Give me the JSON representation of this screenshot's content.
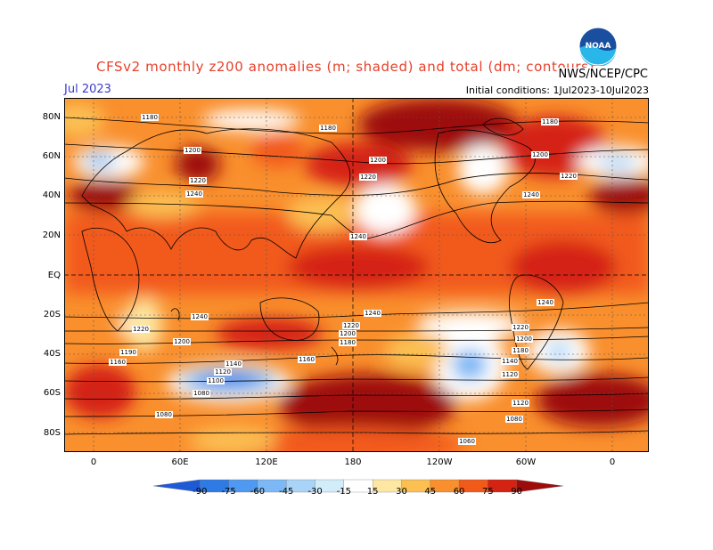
{
  "title": "CFSv2 monthly z200 anomalies (m; shaded) and total (dm; contours)",
  "period": "Jul 2023",
  "initial_conditions": "Initial conditions: 1Jul2023-10Jul2023",
  "agency": "NWS/NCEP/CPC",
  "logo_text": "NOAA",
  "lat_labels": [
    "80N",
    "60N",
    "40N",
    "20N",
    "EQ",
    "20S",
    "40S",
    "60S",
    "80S"
  ],
  "lon_labels": [
    "0",
    "60E",
    "120E",
    "180",
    "120W",
    "60W",
    "0"
  ],
  "colorbar": {
    "ticks": [
      "-90",
      "-75",
      "-60",
      "-45",
      "-30",
      "-15",
      "15",
      "30",
      "45",
      "60",
      "75",
      "90"
    ],
    "colors": [
      "#1e5ad6",
      "#2f7be6",
      "#4f9af0",
      "#7bb8f5",
      "#a9d4f8",
      "#d2ecfa",
      "#ffffff",
      "#fde7a3",
      "#fbbf52",
      "#f98f2d",
      "#f25a1a",
      "#d52313",
      "#9e0b0b"
    ]
  },
  "contour_labels": [
    {
      "text": "1180",
      "pos": "north-atlantic-europe"
    },
    {
      "text": "1180",
      "pos": "arctic-asia"
    },
    {
      "text": "1180",
      "pos": "arctic-canada"
    },
    {
      "text": "1200",
      "pos": "europe"
    },
    {
      "text": "1200",
      "pos": "north-pacific-east"
    },
    {
      "text": "1200",
      "pos": "canada"
    },
    {
      "text": "1220",
      "pos": "central-asia"
    },
    {
      "text": "1220",
      "pos": "north-pacific"
    },
    {
      "text": "1220",
      "pos": "atlantic-north"
    },
    {
      "text": "1240",
      "pos": "mid-asia"
    },
    {
      "text": "1240",
      "pos": "east-pacific"
    },
    {
      "text": "1240",
      "pos": "atlantic"
    },
    {
      "text": "1240",
      "pos": "south-indian"
    },
    {
      "text": "1240",
      "pos": "south-pacific"
    },
    {
      "text": "1240",
      "pos": "south-atlantic"
    },
    {
      "text": "1220",
      "pos": "south-africa"
    },
    {
      "text": "1220",
      "pos": "tasman"
    },
    {
      "text": "1220",
      "pos": "south-america"
    },
    {
      "text": "1200",
      "pos": "south-indian-2"
    },
    {
      "text": "1200",
      "pos": "new-zealand"
    },
    {
      "text": "1200",
      "pos": "south-america-2"
    },
    {
      "text": "1190",
      "pos": "south-atlantic-2"
    },
    {
      "text": "1180",
      "pos": "nz-south"
    },
    {
      "text": "1180",
      "pos": "sa-south"
    },
    {
      "text": "1160",
      "pos": "south-atlantic-3"
    },
    {
      "text": "1160",
      "pos": "tasman-2"
    },
    {
      "text": "1140",
      "pos": "south-indian-3"
    },
    {
      "text": "1140",
      "pos": "drake"
    },
    {
      "text": "1120",
      "pos": "south-indian-4"
    },
    {
      "text": "1120",
      "pos": "drake-2"
    },
    {
      "text": "1100",
      "pos": "south-indian-5"
    },
    {
      "text": "1080",
      "pos": "antarctic-east"
    },
    {
      "text": "1080",
      "pos": "antarctic-west"
    },
    {
      "text": "1080",
      "pos": "antarctic-south"
    },
    {
      "text": "1120",
      "pos": "south-ocean"
    },
    {
      "text": "1060",
      "pos": "antarctic"
    }
  ]
}
